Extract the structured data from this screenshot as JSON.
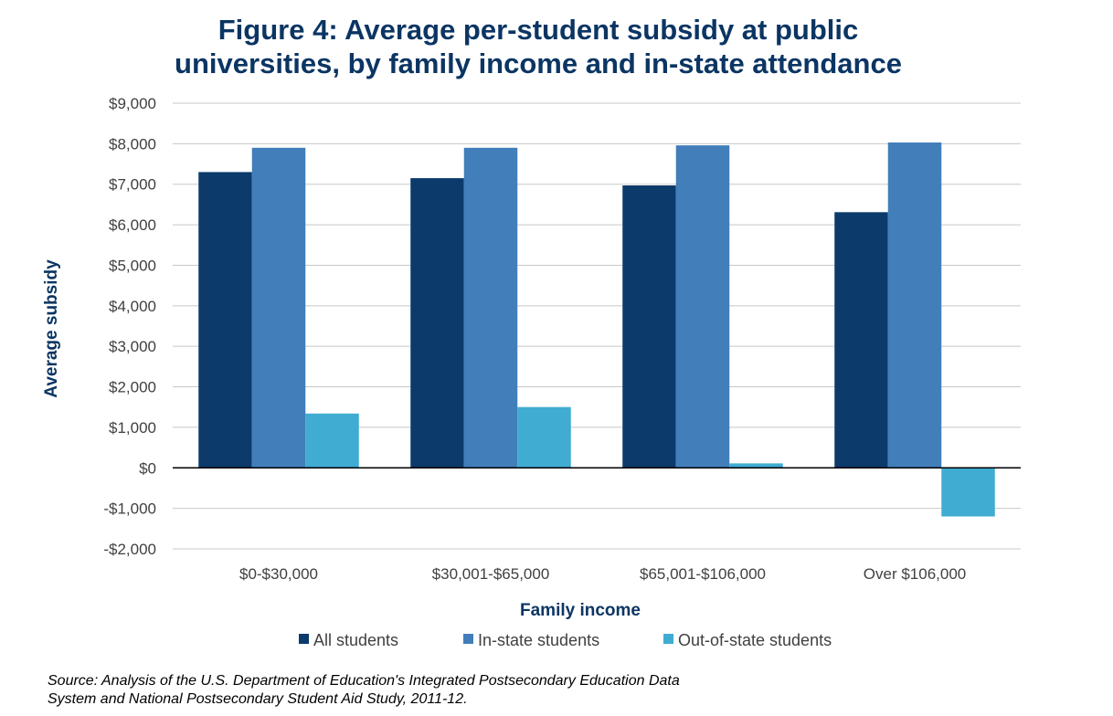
{
  "chart_data": {
    "type": "bar",
    "title_lines": [
      "Figure 4: Average per-student subsidy at public",
      "universities, by family income and in-state attendance"
    ],
    "xlabel": "Family income",
    "ylabel": "Average subsidy",
    "categories": [
      "$0-$30,000",
      "$30,001-$65,000",
      "$65,001-$106,000",
      "Over $106,000"
    ],
    "series": [
      {
        "name": "All students",
        "color": "#0b3a6b",
        "values": [
          7300,
          7150,
          6970,
          6310
        ]
      },
      {
        "name": "In-state students",
        "color": "#417eba",
        "values": [
          7900,
          7900,
          7960,
          8030
        ]
      },
      {
        "name": "Out-of-state students",
        "color": "#40acd1",
        "values": [
          1340,
          1500,
          110,
          -1200
        ]
      }
    ],
    "ylim": [
      -2000,
      9000
    ],
    "yticks": [
      9000,
      8000,
      7000,
      6000,
      5000,
      4000,
      3000,
      2000,
      1000,
      0,
      -1000,
      -2000
    ],
    "ytick_labels": [
      "$9,000",
      "$8,000",
      "$7,000",
      "$6,000",
      "$5,000",
      "$4,000",
      "$3,000",
      "$2,000",
      "$1,000",
      "$0",
      "-$1,000",
      "-$2,000"
    ],
    "grid": true,
    "legend_position": "bottom"
  },
  "source_lines": [
    "Source: Analysis of the U.S. Department of Education's Integrated Postsecondary Education Data",
    "System and National Postsecondary Student Aid Study, 2011-12."
  ]
}
